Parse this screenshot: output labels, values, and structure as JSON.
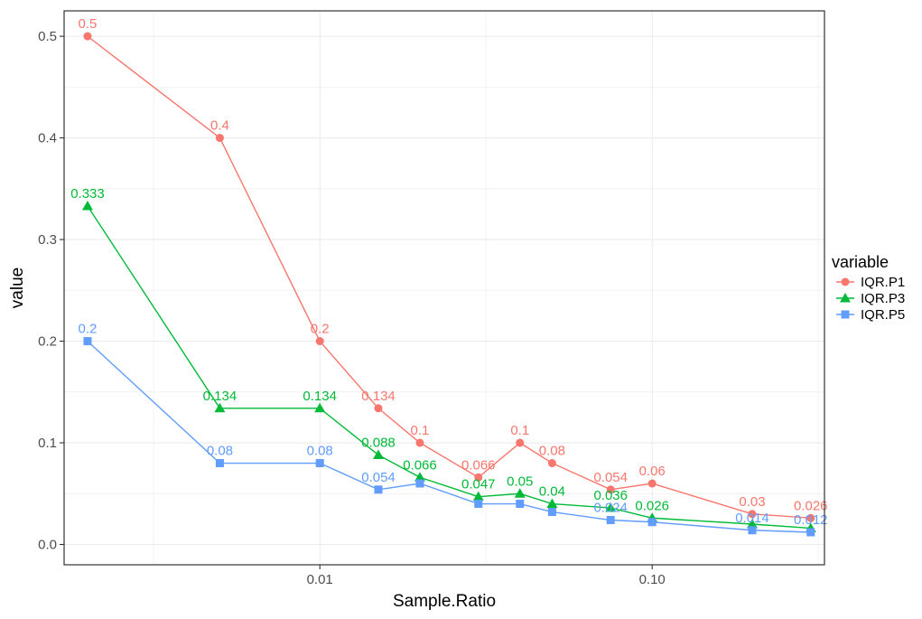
{
  "chart_data": {
    "type": "line",
    "xlabel": "Sample.Ratio",
    "ylabel": "value",
    "x_scale": "log10",
    "xlim": [
      0.0017,
      0.33
    ],
    "ylim": [
      -0.02,
      0.525
    ],
    "x_ticks": [
      {
        "value": 0.01,
        "label": "0.01"
      },
      {
        "value": 0.1,
        "label": "0.10"
      }
    ],
    "x_minor_ticks": [
      0.00316,
      0.0316,
      0.316
    ],
    "y_ticks": [
      {
        "value": 0,
        "label": "0.0"
      },
      {
        "value": 0.1,
        "label": "0.1"
      },
      {
        "value": 0.2,
        "label": "0.2"
      },
      {
        "value": 0.3,
        "label": "0.3"
      },
      {
        "value": 0.4,
        "label": "0.4"
      },
      {
        "value": 0.5,
        "label": "0.5"
      }
    ],
    "y_minor_ticks": [
      0.05,
      0.15,
      0.25,
      0.35,
      0.45
    ],
    "grid": true,
    "legend": {
      "title": "variable",
      "position": "right"
    },
    "x": [
      0.002,
      0.005,
      0.01,
      0.015,
      0.02,
      0.03,
      0.04,
      0.05,
      0.075,
      0.1,
      0.2,
      0.3
    ],
    "series": [
      {
        "name": "IQR.P1",
        "color": "#F8766D",
        "marker": "circle",
        "values": [
          0.5,
          0.4,
          0.2,
          0.134,
          0.1,
          0.066,
          0.1,
          0.08,
          0.054,
          0.06,
          0.03,
          0.026
        ],
        "labels": [
          "0.5",
          "0.4",
          "0.2",
          "0.134",
          "0.1",
          "0.066",
          "0.1",
          "0.08",
          "0.054",
          "0.06",
          "0.03",
          "0.026"
        ]
      },
      {
        "name": "IQR.P3",
        "color": "#00BA38",
        "marker": "triangle",
        "values": [
          0.333,
          0.134,
          0.134,
          0.088,
          0.066,
          0.047,
          0.05,
          0.04,
          0.036,
          0.026,
          0.02,
          0.016
        ],
        "labels": [
          "0.333",
          "0.134",
          "0.134",
          "0.088",
          "0.066",
          "0.047",
          "0.05",
          "0.04",
          "0.036",
          "0.026",
          "",
          ""
        ]
      },
      {
        "name": "IQR.P5",
        "color": "#619CFF",
        "marker": "square",
        "values": [
          0.2,
          0.08,
          0.08,
          0.054,
          0.06,
          0.04,
          0.04,
          0.032,
          0.024,
          0.022,
          0.014,
          0.012
        ],
        "labels": [
          "0.2",
          "0.08",
          "0.08",
          "0.054",
          "",
          "",
          "",
          "",
          "0.024",
          "",
          "0.014",
          "0.012"
        ]
      }
    ]
  }
}
